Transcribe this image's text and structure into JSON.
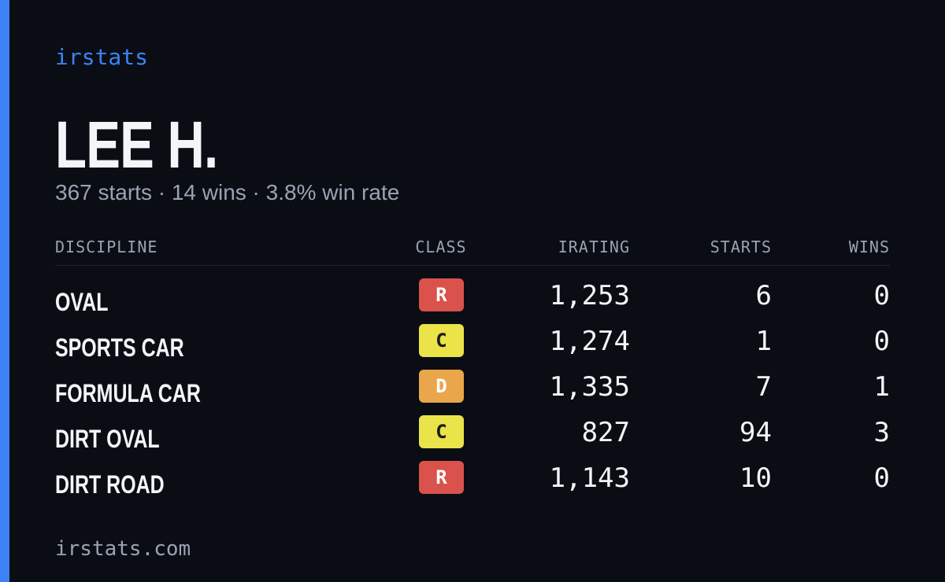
{
  "brand": "irstats",
  "driver": {
    "name": "LEE H.",
    "summary": "367 starts · 14 wins · 3.8% win rate"
  },
  "table": {
    "headers": [
      "DISCIPLINE",
      "CLASS",
      "IRATING",
      "STARTS",
      "WINS"
    ],
    "rows": [
      {
        "discipline": "OVAL",
        "class": "R",
        "class_color": "#d9524c",
        "class_text_color": "#ffffff",
        "irating": "1,253",
        "starts": "6",
        "wins": "0"
      },
      {
        "discipline": "SPORTS CAR",
        "class": "C",
        "class_color": "#ebe34a",
        "class_text_color": "#1a1a1a",
        "irating": "1,274",
        "starts": "1",
        "wins": "0"
      },
      {
        "discipline": "FORMULA CAR",
        "class": "D",
        "class_color": "#eaa64a",
        "class_text_color": "#ffffff",
        "irating": "1,335",
        "starts": "7",
        "wins": "1"
      },
      {
        "discipline": "DIRT OVAL",
        "class": "C",
        "class_color": "#ebe34a",
        "class_text_color": "#1a1a1a",
        "irating": "827",
        "starts": "94",
        "wins": "3"
      },
      {
        "discipline": "DIRT ROAD",
        "class": "R",
        "class_color": "#d9524c",
        "class_text_color": "#ffffff",
        "irating": "1,143",
        "starts": "10",
        "wins": "0"
      }
    ]
  },
  "footer": "irstats.com"
}
